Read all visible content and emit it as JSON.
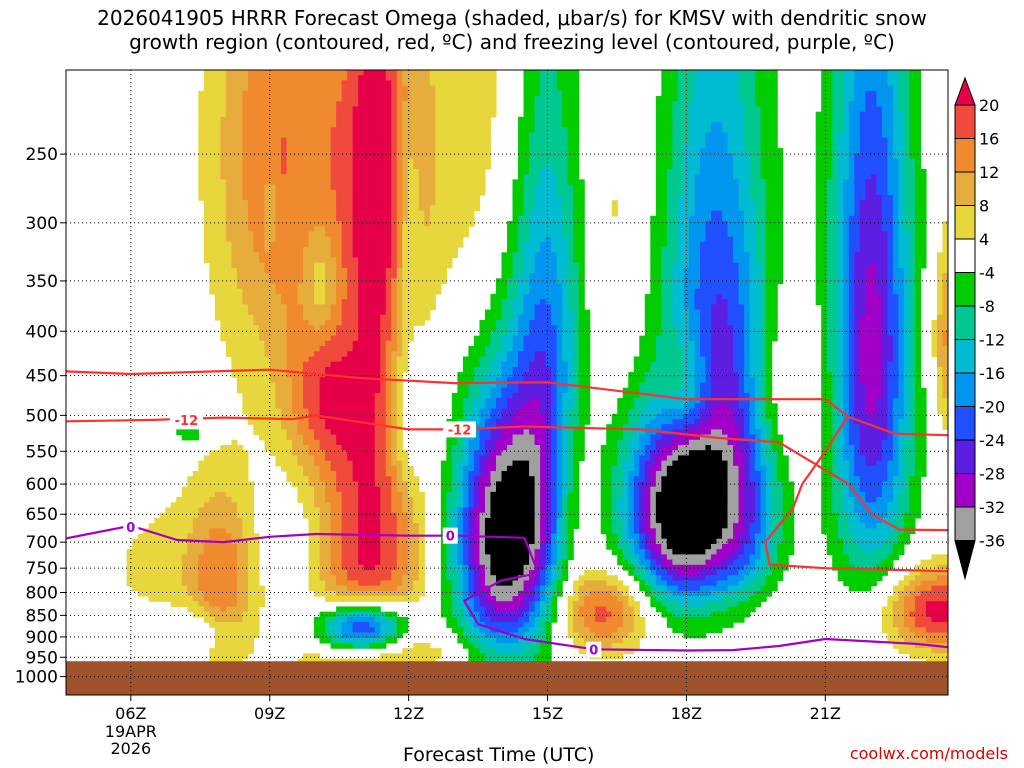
{
  "title_line1": "2026041905 HRRR Forecast Omega (shaded, μbar/s) for KMSV with dendritic snow",
  "title_line2": "growth region (contoured, red, ºC) and freezing level (contoured, purple, ºC)",
  "credit": "coolwx.com/models",
  "chart_data": {
    "type": "heatmap",
    "xlabel": "Forecast Time (UTC)",
    "ylabel": "",
    "x_range_hours": [
      4.6,
      23.65
    ],
    "x_ticks": [
      {
        "hour": 6,
        "label": "06Z",
        "sub": [
          "19APR",
          "2026"
        ]
      },
      {
        "hour": 9,
        "label": "09Z"
      },
      {
        "hour": 12,
        "label": "12Z"
      },
      {
        "hour": 15,
        "label": "15Z"
      },
      {
        "hour": 18,
        "label": "18Z"
      },
      {
        "hour": 21,
        "label": "21Z"
      }
    ],
    "y_axis": "pressure (hPa), log scale, inverted",
    "y_range": [
      200,
      1050
    ],
    "y_ticks": [
      250,
      300,
      350,
      400,
      450,
      500,
      550,
      600,
      650,
      700,
      750,
      800,
      850,
      900,
      950,
      1000
    ],
    "grid": true,
    "colorbar": {
      "unit": "μbar/s",
      "levels": [
        20,
        16,
        12,
        8,
        4,
        -4,
        -8,
        -12,
        -16,
        -20,
        -24,
        -28,
        -32,
        -36
      ],
      "colors": [
        "#e60048",
        "#f04a3c",
        "#ef8a2f",
        "#e6ad3c",
        "#e7d73c",
        "#ffffff",
        "#00cc00",
        "#00c891",
        "#00bcd2",
        "#0096f0",
        "#2050ff",
        "#5c1ee0",
        "#a000c8",
        "#a0a0a0",
        "#000000"
      ]
    },
    "contours": [
      {
        "name": "dendritic -12 lower",
        "color": "#ff3030",
        "label": "-12",
        "points": [
          [
            4.6,
            508
          ],
          [
            6.5,
            506
          ],
          [
            8,
            503
          ],
          [
            9.5,
            505
          ],
          [
            10,
            500
          ],
          [
            12,
            519
          ],
          [
            13,
            519
          ],
          [
            14.5,
            515
          ],
          [
            17,
            519
          ],
          [
            18.7,
            531
          ],
          [
            20,
            537
          ],
          [
            21.5,
            600
          ],
          [
            22,
            650
          ],
          [
            22.6,
            677
          ],
          [
            23.65,
            678
          ]
        ]
      },
      {
        "name": "dendritic -12 upper",
        "color": "#ff3030",
        "label": "",
        "points": [
          [
            4.6,
            445
          ],
          [
            6,
            448
          ],
          [
            9,
            443
          ],
          [
            11,
            453
          ],
          [
            13,
            459
          ],
          [
            15,
            458
          ],
          [
            18,
            479
          ],
          [
            21,
            479
          ],
          [
            21.5,
            502
          ],
          [
            22.5,
            525
          ],
          [
            23.65,
            527
          ]
        ]
      },
      {
        "name": "dendritic -12 loop",
        "color": "#ff3030",
        "label": "",
        "points": [
          [
            23.65,
            756
          ],
          [
            21,
            750
          ],
          [
            19.8,
            743
          ],
          [
            19.7,
            700
          ],
          [
            20.3,
            640
          ],
          [
            20.5,
            600
          ],
          [
            21,
            550
          ],
          [
            21.5,
            500
          ]
        ]
      },
      {
        "name": "freezing level 0",
        "color": "#a000c8",
        "label": "0",
        "points": [
          [
            4.6,
            693
          ],
          [
            6,
            670
          ],
          [
            7,
            696
          ],
          [
            8,
            700
          ],
          [
            9,
            690
          ],
          [
            10,
            685
          ],
          [
            12,
            688
          ],
          [
            13,
            688
          ],
          [
            14.5,
            692
          ],
          [
            14.8,
            760
          ],
          [
            14,
            775
          ],
          [
            13.2,
            818
          ],
          [
            13.5,
            870
          ],
          [
            14.5,
            905
          ],
          [
            16,
            930
          ],
          [
            18,
            933
          ],
          [
            19,
            932
          ],
          [
            20,
            922
          ],
          [
            21,
            905
          ],
          [
            23,
            917
          ],
          [
            23.65,
            925
          ]
        ]
      }
    ],
    "contour_labels": [
      {
        "text": "-12",
        "hour": 7.2,
        "p": 506
      },
      {
        "text": "-12",
        "hour": 13.1,
        "p": 519
      },
      {
        "text": "0",
        "hour": 6.0,
        "p": 672
      },
      {
        "text": "0",
        "hour": 12.9,
        "p": 688
      },
      {
        "text": "0",
        "hour": 16.0,
        "p": 931
      }
    ],
    "ground_pressure": 960,
    "omega_features": [
      {
        "hour": 8.0,
        "p": 770,
        "rh": 0.75,
        "rp": 180,
        "max": 14
      },
      {
        "hour": 6.6,
        "p": 750,
        "rh": 1.5,
        "rp": 170,
        "max": 5
      },
      {
        "hour": 10.2,
        "p": 330,
        "rh": 2.1,
        "rp": 290,
        "max": 5
      },
      {
        "hour": 9.0,
        "p": 240,
        "rh": 1.3,
        "rp": 160,
        "max": 12
      },
      {
        "hour": 11.4,
        "p": 245,
        "rh": 1.2,
        "rp": 120,
        "max": 14
      },
      {
        "hour": 11.3,
        "p": 340,
        "rh": 0.5,
        "rp": 200,
        "max": 9
      },
      {
        "hour": 10.2,
        "p": 470,
        "rh": 0.9,
        "rp": 90,
        "max": 10
      },
      {
        "hour": 11.0,
        "p": 720,
        "rh": 1.3,
        "rp": 270,
        "max": 24
      },
      {
        "hour": 12.0,
        "p": 935,
        "rh": 2.4,
        "rp": 55,
        "max": 6
      },
      {
        "hour": 10.0,
        "p": 700,
        "rh": 1.3,
        "rp": 130,
        "max": -8
      },
      {
        "hour": 11.0,
        "p": 880,
        "rh": 1.0,
        "rp": 65,
        "max": -40
      },
      {
        "hour": 10.1,
        "p": 355,
        "rh": 0.35,
        "rp": 55,
        "max": -8
      },
      {
        "hour": 12.0,
        "p": 290,
        "rh": 0.25,
        "rp": 80,
        "max": -8
      },
      {
        "hour": 12.0,
        "p": 510,
        "rh": 0.45,
        "rp": 95,
        "max": -9
      },
      {
        "hour": 7.3,
        "p": 885,
        "rh": 0.9,
        "rp": 50,
        "max": -8
      },
      {
        "hour": 7.3,
        "p": 525,
        "rh": 0.5,
        "rp": 15,
        "max": -8
      },
      {
        "hour": 9.0,
        "p": 290,
        "rh": 0.12,
        "rp": 25,
        "max": -8
      },
      {
        "hour": 14.1,
        "p": 690,
        "rh": 1.1,
        "rp": 250,
        "max": -42
      },
      {
        "hour": 15.0,
        "p": 420,
        "rh": 0.75,
        "rp": 260,
        "max": -17
      },
      {
        "hour": 13.6,
        "p": 230,
        "rh": 0.9,
        "rp": 250,
        "max": 6
      },
      {
        "hour": 16.2,
        "p": 840,
        "rh": 1.1,
        "rp": 95,
        "max": 19
      },
      {
        "hour": 15.6,
        "p": 620,
        "rh": 0.55,
        "rp": 140,
        "max": 7
      },
      {
        "hour": 16.5,
        "p": 300,
        "rh": 0.6,
        "rp": 150,
        "max": 5
      },
      {
        "hour": 17.9,
        "p": 650,
        "rh": 1.2,
        "rp": 170,
        "max": -42
      },
      {
        "hour": 18.8,
        "p": 360,
        "rh": 1.2,
        "rp": 250,
        "max": -24
      },
      {
        "hour": 18.0,
        "p": 470,
        "rh": 0.6,
        "rp": 70,
        "max": 13
      },
      {
        "hour": 19.3,
        "p": 680,
        "rh": 0.8,
        "rp": 230,
        "max": -12
      },
      {
        "hour": 19.4,
        "p": 270,
        "rh": 0.9,
        "rp": 120,
        "max": 5
      },
      {
        "hour": 19.3,
        "p": 840,
        "rh": 1.0,
        "rp": 85,
        "max": 6
      },
      {
        "hour": 20.0,
        "p": 460,
        "rh": 0.9,
        "rp": 110,
        "max": 9
      },
      {
        "hour": 22.0,
        "p": 420,
        "rh": 0.85,
        "rp": 330,
        "max": -30
      },
      {
        "hour": 23.45,
        "p": 840,
        "rh": 1.3,
        "rp": 95,
        "max": 22
      },
      {
        "hour": 23.7,
        "p": 410,
        "rh": 0.4,
        "rp": 110,
        "max": 14
      }
    ]
  }
}
